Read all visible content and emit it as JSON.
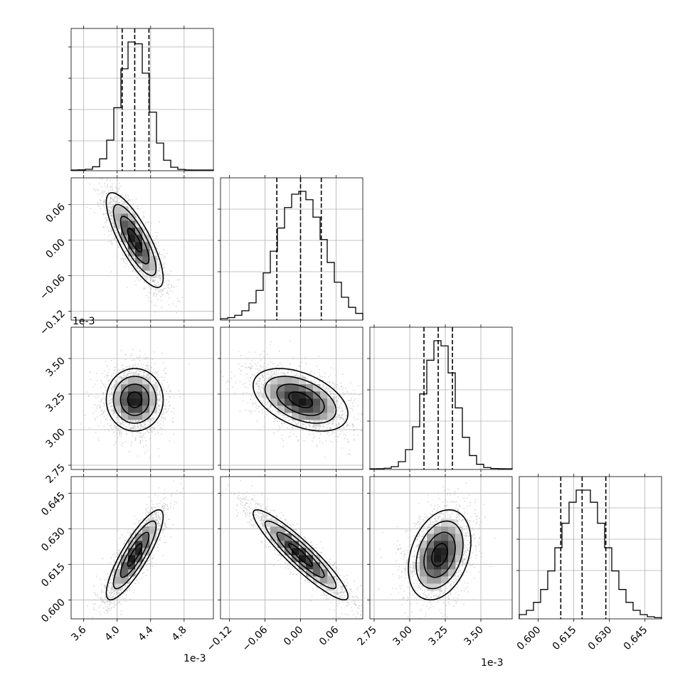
{
  "figure": {
    "background": "#ffffff",
    "line_color": "#000000",
    "grid_color": "#b0b0b0",
    "scatter_color": "#b8b8b8"
  },
  "chart_data": {
    "type": "corner",
    "grid": true,
    "variables": [
      {
        "range": [
          3.45,
          5.15
        ],
        "ticks": [
          3.6,
          4.0,
          4.4,
          4.8
        ],
        "tick_labels": [
          "3.6",
          "4.0",
          "4.4",
          "4.8"
        ],
        "multiplier": "1e-3",
        "quantiles": [
          4.06,
          4.21,
          4.38
        ],
        "mean": 4.21,
        "std": 0.17
      },
      {
        "range": [
          -0.135,
          0.105
        ],
        "ticks": [
          -0.12,
          -0.06,
          0.0,
          0.06
        ],
        "tick_labels": [
          "−0.12",
          "−0.06",
          "0.00",
          "0.06"
        ],
        "multiplier": "",
        "quantiles": [
          -0.04,
          0.0,
          0.035
        ],
        "mean": 0.0,
        "std": 0.04
      },
      {
        "range": [
          2.72,
          3.72
        ],
        "ticks": [
          2.75,
          3.0,
          3.25,
          3.5
        ],
        "tick_labels": [
          "2.75",
          "3.00",
          "3.25",
          "3.50"
        ],
        "multiplier": "1e-3",
        "quantiles": [
          3.1,
          3.2,
          3.3
        ],
        "mean": 3.21,
        "std": 0.11
      },
      {
        "range": [
          0.592,
          0.652
        ],
        "ticks": [
          0.6,
          0.615,
          0.63,
          0.645
        ],
        "tick_labels": [
          "0.600",
          "0.615",
          "0.630",
          "0.645"
        ],
        "multiplier": "",
        "quantiles": [
          0.6095,
          0.6185,
          0.6285
        ],
        "mean": 0.619,
        "std": 0.0095
      }
    ],
    "correlations": {
      "1-0": -0.8,
      "2-0": 0.0,
      "2-1": -0.45,
      "3-0": 0.85,
      "3-1": -0.92,
      "3-2": 0.3
    }
  }
}
